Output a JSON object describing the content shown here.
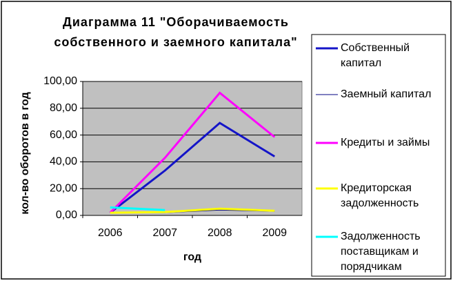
{
  "chart_data": {
    "type": "line",
    "title": [
      "Диаграмма 11   \"Оборачиваемость",
      "собственного и заемного капитала\""
    ],
    "x_label": "год",
    "y_label": "кол-во оборотов в год",
    "categories": [
      "2006",
      "2007",
      "2008",
      "2009"
    ],
    "series": [
      {
        "name": "Собственный капитал",
        "color": "#1414c8",
        "width": 3,
        "values": [
          2,
          33.5,
          69,
          44
        ]
      },
      {
        "name": "Заемный капитал",
        "color": "#000080",
        "width": 1,
        "values": [
          2,
          2,
          4,
          3
        ]
      },
      {
        "name": "Кредиты и займы",
        "color": "#ff00ff",
        "width": 3,
        "values": [
          2,
          43,
          91.5,
          58.5
        ]
      },
      {
        "name": "Кредиторская задолженность",
        "color": "#ffff00",
        "width": 3,
        "values": [
          2,
          2.5,
          5,
          3.5
        ]
      },
      {
        "name": "Задолженность поставщикам и порядчикам",
        "color": "#00ffff",
        "width": 3,
        "values": [
          6,
          4,
          null,
          null
        ]
      }
    ],
    "ylim": [
      0,
      100
    ],
    "yticks": [
      {
        "value": 0,
        "label": "0,00"
      },
      {
        "value": 20,
        "label": "20,00"
      },
      {
        "value": 40,
        "label": "40,00"
      },
      {
        "value": 60,
        "label": "60,00"
      },
      {
        "value": 80,
        "label": "80,00"
      },
      {
        "value": 100,
        "label": "100,00"
      }
    ],
    "grid": true,
    "plot_background": "#c0c0c0",
    "legend": "right"
  }
}
